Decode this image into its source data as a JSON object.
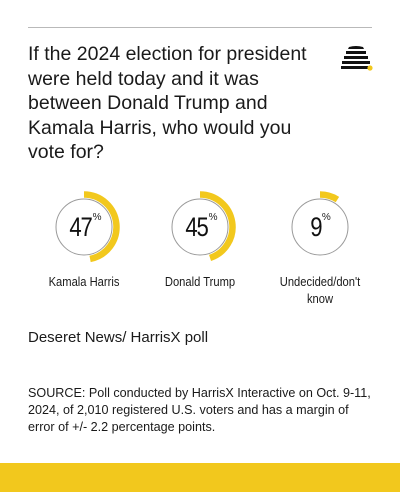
{
  "question": "If the 2024 election for president were held today and it was between Donald Trump and Kamala Harris, who would you vote for?",
  "source_name": "Deseret News/ HarrisX poll",
  "footnote": "SOURCE: Poll conducted by HarrisX Interactive on Oct. 9-11, 2024, of 2,010 registered U.S. voters and has a margin of error of +/- 2.2 percentage points.",
  "colors": {
    "accent": "#f2c81d",
    "ring": "#9a9a9a",
    "text": "#1a1a1a"
  },
  "chart_data": {
    "type": "pie",
    "percent_symbol": "%",
    "categories": [
      "Kamala Harris",
      "Donald Trump",
      "Undecided/don't know"
    ],
    "values": [
      47,
      45,
      9
    ],
    "items": [
      {
        "label": "Kamala Harris",
        "value": 47,
        "display": "47"
      },
      {
        "label": "Donald Trump",
        "value": 45,
        "display": "45"
      },
      {
        "label": "Undecided/don't know",
        "value": 9,
        "display": "9"
      }
    ]
  }
}
